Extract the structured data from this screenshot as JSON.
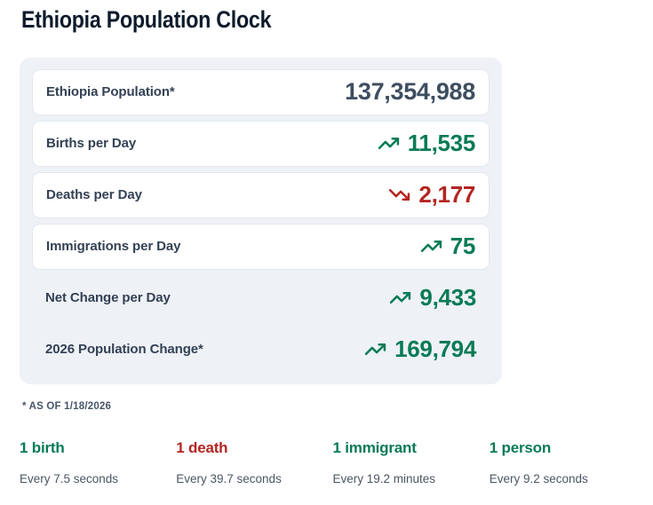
{
  "page": {
    "title": "Ethiopia Population Clock"
  },
  "colors": {
    "green": "#077b55",
    "red": "#b42521",
    "neutral": "#3e4e61"
  },
  "clock": {
    "rows": [
      {
        "label": "Ethiopia Population*",
        "value": "137,354,988",
        "icon": null,
        "color": "neutral",
        "card": true
      },
      {
        "label": "Births per Day",
        "value": "11,535",
        "icon": "trend-up-icon",
        "color": "green",
        "card": true
      },
      {
        "label": "Deaths per Day",
        "value": "2,177",
        "icon": "trend-down-icon",
        "color": "red",
        "card": true
      },
      {
        "label": "Immigrations per Day",
        "value": "75",
        "icon": "trend-up-icon",
        "color": "green",
        "card": true
      },
      {
        "label": "Net Change per Day",
        "value": "9,433",
        "icon": "trend-up-icon",
        "color": "green",
        "card": false
      },
      {
        "label": "2026 Population Change*",
        "value": "169,794",
        "icon": "trend-up-icon",
        "color": "green",
        "card": false
      }
    ],
    "footnote": "* AS OF 1/18/2026"
  },
  "frequency_stats": [
    {
      "label": "1 birth",
      "detail": "Every 7.5 seconds",
      "color": "green"
    },
    {
      "label": "1 death",
      "detail": "Every 39.7 seconds",
      "color": "red"
    },
    {
      "label": "1 immigrant",
      "detail": "Every 19.2 minutes",
      "color": "green"
    },
    {
      "label": "1 person",
      "detail": "Every 9.2 seconds",
      "color": "green"
    }
  ]
}
